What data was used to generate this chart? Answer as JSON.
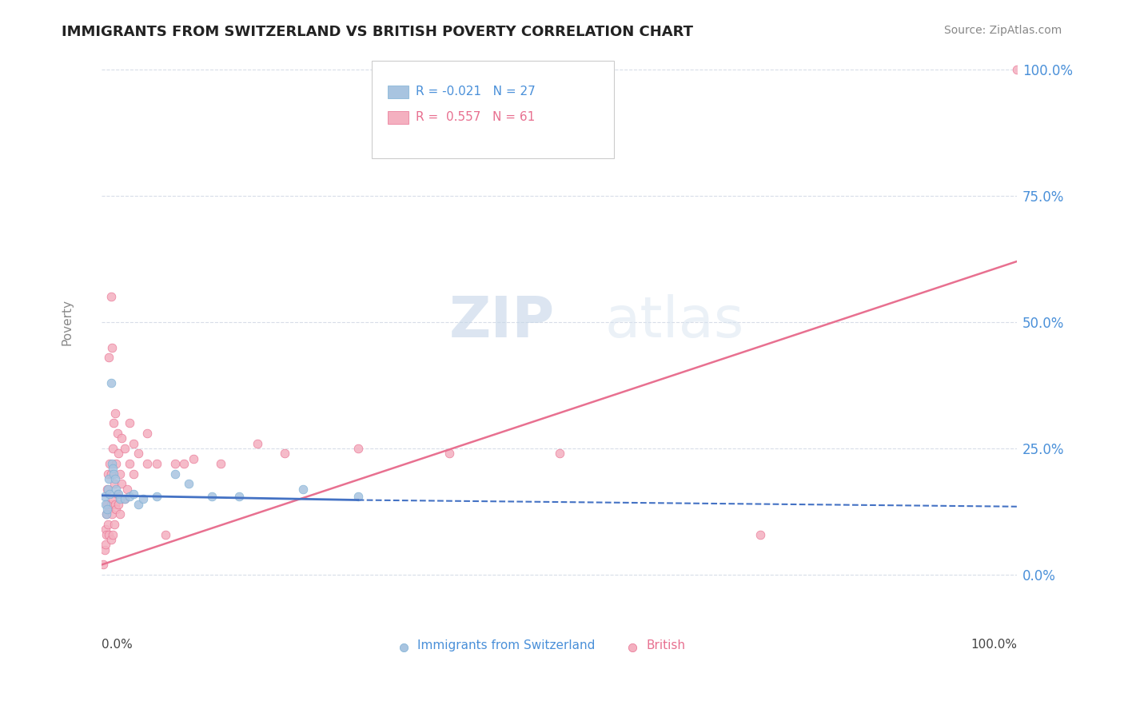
{
  "title": "IMMIGRANTS FROM SWITZERLAND VS BRITISH POVERTY CORRELATION CHART",
  "source": "Source: ZipAtlas.com",
  "ylabel": "Poverty",
  "watermark_zip": "ZIP",
  "watermark_atlas": "atlas",
  "legend": {
    "swiss": {
      "R": -0.021,
      "N": 27
    },
    "british": {
      "R": 0.557,
      "N": 61
    }
  },
  "yticks": [
    "0.0%",
    "25.0%",
    "50.0%",
    "75.0%",
    "100.0%"
  ],
  "ytick_values": [
    0.0,
    0.25,
    0.5,
    0.75,
    1.0
  ],
  "xlim": [
    0.0,
    1.0
  ],
  "ylim": [
    -0.05,
    1.05
  ],
  "swiss_scatter": [
    [
      0.003,
      0.155
    ],
    [
      0.004,
      0.14
    ],
    [
      0.005,
      0.12
    ],
    [
      0.006,
      0.13
    ],
    [
      0.007,
      0.17
    ],
    [
      0.008,
      0.19
    ],
    [
      0.009,
      0.16
    ],
    [
      0.01,
      0.38
    ],
    [
      0.011,
      0.22
    ],
    [
      0.012,
      0.21
    ],
    [
      0.013,
      0.2
    ],
    [
      0.015,
      0.19
    ],
    [
      0.016,
      0.17
    ],
    [
      0.018,
      0.16
    ],
    [
      0.02,
      0.15
    ],
    [
      0.025,
      0.15
    ],
    [
      0.03,
      0.155
    ],
    [
      0.035,
      0.16
    ],
    [
      0.04,
      0.14
    ],
    [
      0.045,
      0.15
    ],
    [
      0.06,
      0.155
    ],
    [
      0.08,
      0.2
    ],
    [
      0.095,
      0.18
    ],
    [
      0.12,
      0.155
    ],
    [
      0.15,
      0.155
    ],
    [
      0.22,
      0.17
    ],
    [
      0.28,
      0.155
    ]
  ],
  "british_scatter": [
    [
      0.002,
      0.02
    ],
    [
      0.003,
      0.05
    ],
    [
      0.004,
      0.06
    ],
    [
      0.004,
      0.09
    ],
    [
      0.005,
      0.08
    ],
    [
      0.005,
      0.12
    ],
    [
      0.006,
      0.14
    ],
    [
      0.006,
      0.17
    ],
    [
      0.007,
      0.1
    ],
    [
      0.007,
      0.2
    ],
    [
      0.008,
      0.08
    ],
    [
      0.008,
      0.13
    ],
    [
      0.008,
      0.43
    ],
    [
      0.009,
      0.22
    ],
    [
      0.01,
      0.07
    ],
    [
      0.01,
      0.14
    ],
    [
      0.01,
      0.2
    ],
    [
      0.01,
      0.55
    ],
    [
      0.011,
      0.12
    ],
    [
      0.011,
      0.45
    ],
    [
      0.012,
      0.08
    ],
    [
      0.012,
      0.15
    ],
    [
      0.012,
      0.25
    ],
    [
      0.013,
      0.3
    ],
    [
      0.014,
      0.1
    ],
    [
      0.014,
      0.18
    ],
    [
      0.015,
      0.14
    ],
    [
      0.015,
      0.32
    ],
    [
      0.016,
      0.13
    ],
    [
      0.016,
      0.22
    ],
    [
      0.017,
      0.16
    ],
    [
      0.017,
      0.28
    ],
    [
      0.018,
      0.14
    ],
    [
      0.018,
      0.24
    ],
    [
      0.02,
      0.12
    ],
    [
      0.02,
      0.2
    ],
    [
      0.022,
      0.18
    ],
    [
      0.022,
      0.27
    ],
    [
      0.025,
      0.15
    ],
    [
      0.025,
      0.25
    ],
    [
      0.028,
      0.17
    ],
    [
      0.03,
      0.22
    ],
    [
      0.03,
      0.3
    ],
    [
      0.035,
      0.2
    ],
    [
      0.035,
      0.26
    ],
    [
      0.04,
      0.24
    ],
    [
      0.05,
      0.22
    ],
    [
      0.05,
      0.28
    ],
    [
      0.06,
      0.22
    ],
    [
      0.07,
      0.08
    ],
    [
      0.08,
      0.22
    ],
    [
      0.09,
      0.22
    ],
    [
      0.1,
      0.23
    ],
    [
      0.13,
      0.22
    ],
    [
      0.17,
      0.26
    ],
    [
      0.2,
      0.24
    ],
    [
      0.28,
      0.25
    ],
    [
      0.38,
      0.24
    ],
    [
      0.5,
      0.24
    ],
    [
      0.72,
      0.08
    ],
    [
      1.0,
      1.0
    ]
  ],
  "swiss_line_solid": {
    "x": [
      0.0,
      0.28
    ],
    "y": [
      0.157,
      0.148
    ]
  },
  "swiss_line_dashed": {
    "x": [
      0.28,
      1.0
    ],
    "y": [
      0.148,
      0.135
    ]
  },
  "british_line": {
    "x": [
      0.0,
      1.0
    ],
    "y": [
      0.02,
      0.62
    ]
  },
  "grid_color": "#d8dde8",
  "scatter_size": 60,
  "swiss_color": "#a8c4e0",
  "swiss_edge_color": "#7aafd4",
  "british_color": "#f4b0c0",
  "british_edge_color": "#e87090",
  "swiss_line_color": "#4472c4",
  "british_line_color": "#e87090",
  "title_color": "#222222",
  "source_color": "#888888",
  "ylabel_color": "#888888",
  "right_ytick_color": "#4a90d9",
  "background_color": "#ffffff",
  "legend_border_color": "#cccccc",
  "legend_text_swiss": "#4a90d9",
  "legend_text_british": "#e87090"
}
